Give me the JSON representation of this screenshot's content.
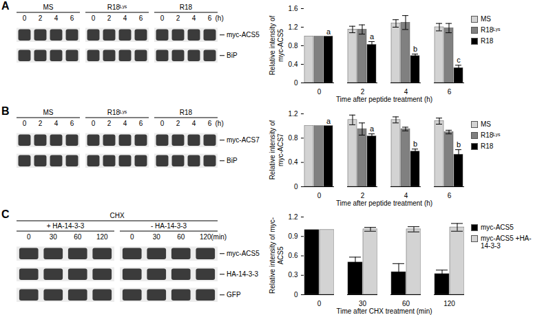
{
  "blots": [
    {
      "panel": "A",
      "groups": [
        {
          "label": "MS",
          "lanes": [
            "0",
            "2",
            "4",
            "6"
          ]
        },
        {
          "label": "R18ᴸʸˢ",
          "lanes": [
            "0",
            "2",
            "4",
            "6"
          ]
        },
        {
          "label": "R18",
          "lanes": [
            "0",
            "2",
            "4",
            "6"
          ]
        }
      ],
      "unit": "(h)",
      "rows": [
        "myc-ACS5",
        "BiP"
      ]
    },
    {
      "panel": "B",
      "groups": [
        {
          "label": "MS",
          "lanes": [
            "0",
            "2",
            "4",
            "6"
          ]
        },
        {
          "label": "R18ᴸʸˢ",
          "lanes": [
            "0",
            "2",
            "4",
            "6"
          ]
        },
        {
          "label": "R18",
          "lanes": [
            "0",
            "2",
            "4",
            "6"
          ]
        }
      ],
      "unit": "(h)",
      "rows": [
        "myc-ACS7",
        "BiP"
      ]
    },
    {
      "panel": "C",
      "header": "CHX",
      "groups": [
        {
          "label": "+ HA-14-3-3",
          "lanes": [
            "0",
            "30",
            "60",
            "120"
          ]
        },
        {
          "label": "- HA-14-3-3",
          "lanes": [
            "0",
            "30",
            "60",
            "120"
          ]
        }
      ],
      "unit": "(min)",
      "rows": [
        "myc-ACS5",
        "HA-14-3-3",
        "GFP"
      ]
    }
  ],
  "chart_data": [
    {
      "type": "bar",
      "xlabel": "Time after peptide treatment (h)",
      "ylabel": "Relative intensity of myc-ACS5",
      "categories": [
        "0",
        "2",
        "4",
        "6"
      ],
      "series": [
        {
          "name": "MS",
          "color": "#d3d3d3",
          "values": [
            1,
            1.15,
            1.28,
            1.2
          ],
          "errors": [
            0,
            0.07,
            0.08,
            0.08
          ]
        },
        {
          "name": "R18ᴸʸˢ",
          "color": "#808080",
          "values": [
            1,
            1.15,
            1.3,
            1.18
          ],
          "errors": [
            0,
            0.1,
            0.15,
            0.1
          ]
        },
        {
          "name": "R18",
          "color": "#000000",
          "values": [
            1,
            0.82,
            0.58,
            0.32
          ],
          "errors": [
            0,
            0.07,
            0.04,
            0.06
          ]
        }
      ],
      "annotations": [
        {
          "category": "0",
          "series": "R18",
          "text": "a"
        },
        {
          "category": "2",
          "series": "R18",
          "text": "a"
        },
        {
          "category": "4",
          "series": "R18",
          "text": "b"
        },
        {
          "category": "6",
          "series": "R18",
          "text": "c"
        }
      ],
      "ylim": [
        0,
        1.6
      ],
      "yticks": [
        0,
        0.4,
        0.8,
        1.2,
        1.6
      ],
      "grid": false,
      "legend": "right"
    },
    {
      "type": "bar",
      "xlabel": "Time after peptide treatment (h)",
      "ylabel": "Relative intensity of myc-ACS7",
      "categories": [
        "0",
        "2",
        "4",
        "6"
      ],
      "series": [
        {
          "name": "MS",
          "color": "#d3d3d3",
          "values": [
            1,
            1.1,
            1.1,
            1.08
          ],
          "errors": [
            0,
            0.08,
            0.05,
            0.05
          ]
        },
        {
          "name": "R18ᴸʸˢ",
          "color": "#808080",
          "values": [
            1,
            0.95,
            0.95,
            0.9
          ],
          "errors": [
            0,
            0.1,
            0.03,
            0.03
          ]
        },
        {
          "name": "R18",
          "color": "#000000",
          "values": [
            1,
            0.83,
            0.58,
            0.53
          ],
          "errors": [
            0,
            0.04,
            0.04,
            0.08
          ]
        }
      ],
      "annotations": [
        {
          "category": "0",
          "series": "R18",
          "text": "a"
        },
        {
          "category": "2",
          "series": "R18",
          "text": "a"
        },
        {
          "category": "4",
          "series": "R18",
          "text": "b"
        },
        {
          "category": "6",
          "series": "R18",
          "text": "b"
        }
      ],
      "ylim": [
        0,
        1.2
      ],
      "yticks": [
        0,
        0.4,
        0.8,
        1.2
      ],
      "grid": false,
      "legend": "right"
    },
    {
      "type": "bar",
      "xlabel": "Time after CHX treatment (min)",
      "ylabel": "Relative intensity of myc-ACS5",
      "categories": [
        "0",
        "30",
        "60",
        "120"
      ],
      "series": [
        {
          "name": "myc-ACS5",
          "color": "#000000",
          "values": [
            1,
            0.5,
            0.35,
            0.32
          ],
          "errors": [
            0,
            0.08,
            0.13,
            0.06
          ]
        },
        {
          "name": "myc-ACS5 +HA-14-3-3",
          "color": "#d3d3d3",
          "values": [
            1,
            1.01,
            1.01,
            1.04
          ],
          "errors": [
            0,
            0.03,
            0.04,
            0.06
          ]
        }
      ],
      "annotations": [],
      "ylim": [
        0,
        1.2
      ],
      "yticks": [
        0,
        0.3,
        0.6,
        0.9,
        1.2
      ],
      "grid": false,
      "legend": "right"
    }
  ]
}
